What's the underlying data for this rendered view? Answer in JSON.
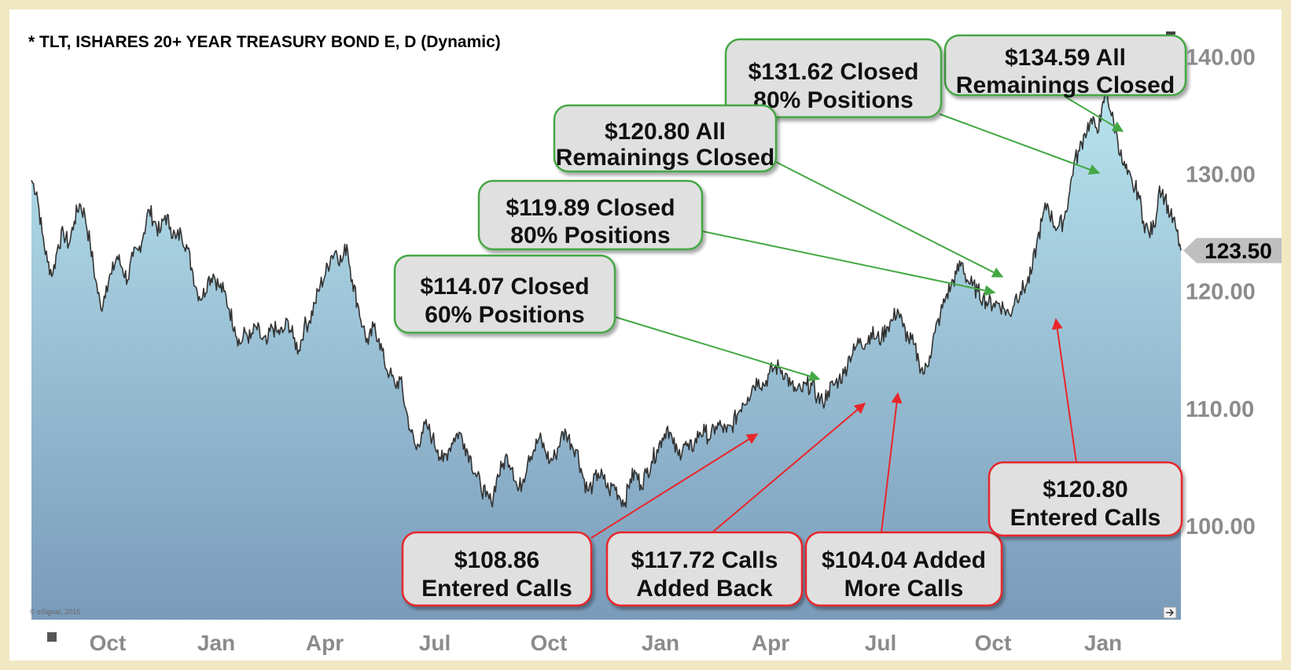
{
  "chart_data": {
    "type": "area",
    "title": "* TLT, ISHARES 20+ YEAR TREASURY BOND E, D (Dynamic)",
    "copyright": "© eSignal, 2015",
    "ylim": [
      92,
      143
    ],
    "y_ticks": [
      "100.00",
      "110.00",
      "120.00",
      "130.00",
      "140.00"
    ],
    "y_tick_values": [
      100,
      110,
      120,
      130,
      140
    ],
    "x_ticks": [
      "Oct",
      "Jan",
      "Apr",
      "Jul",
      "Oct",
      "Jan",
      "Apr",
      "Jul",
      "Oct",
      "Jan"
    ],
    "last_price": "123.50",
    "last_value": 123.5,
    "series": [
      {
        "values": [
          129.5,
          128.5,
          125,
          122.5,
          121.5,
          124,
          125,
          124,
          126,
          127.5,
          126.5,
          124,
          121,
          118.5,
          120.5,
          121.5,
          123,
          122,
          121,
          123,
          123.5,
          125,
          127,
          126,
          125,
          126.5,
          125.5,
          124.5,
          125,
          124,
          122,
          120,
          119.5,
          121,
          121.5,
          120.5,
          120,
          118.5,
          117,
          115.5,
          116.5,
          116,
          117,
          116,
          115.5,
          117,
          116.5,
          116.5,
          117.5,
          116,
          115,
          117,
          117.5,
          119,
          120.5,
          121.5,
          123,
          123.5,
          122.5,
          124,
          121,
          119,
          117,
          115.5,
          117,
          116,
          114,
          113,
          112,
          112.5,
          110,
          108,
          106.5,
          108,
          108.5,
          107.5,
          106.5,
          105.5,
          106.5,
          107.5,
          108,
          107,
          106,
          104.5,
          103.5,
          102.5,
          102,
          104,
          105,
          106,
          105,
          103,
          104,
          106,
          106.5,
          107.5,
          106.5,
          105.5,
          106,
          107.5,
          108,
          107,
          106.5,
          104.5,
          103,
          103.5,
          104.5,
          104,
          103,
          103.5,
          102.5,
          102,
          104,
          104.5,
          103.5,
          104.5,
          105.5,
          106.5,
          107.5,
          108.5,
          107,
          106,
          107,
          106.5,
          107,
          108,
          108,
          107.5,
          108.5,
          108.5,
          108,
          108.5,
          109.5,
          110.5,
          111,
          112,
          112.5,
          112,
          113,
          113.5,
          113.5,
          113,
          112,
          111.5,
          111.5,
          112,
          112,
          111,
          110.5,
          111.5,
          112,
          112.5,
          113,
          114.5,
          115,
          116,
          115.5,
          116.5,
          116,
          116,
          117,
          117.5,
          118.5,
          117,
          116,
          115.5,
          114,
          113,
          114.5,
          116.5,
          118,
          119.5,
          120.5,
          121.5,
          122.5,
          121,
          120.5,
          120,
          119.5,
          119,
          119,
          119,
          118.5,
          118,
          119.5,
          120,
          120.5,
          121.5,
          124,
          126,
          127.5,
          126,
          125.5,
          126,
          128,
          131,
          132,
          133.5,
          134.5,
          134,
          134.5,
          137.5,
          135,
          133.5,
          131,
          130,
          129,
          128.5,
          126,
          125,
          125.5,
          129,
          128,
          126.5,
          125.5,
          123.5
        ]
      }
    ],
    "annotations": [
      {
        "text_lines": [
          "$134.59 All",
          "Remainings Closed"
        ],
        "color": "#44a844"
      },
      {
        "text_lines": [
          "$131.62 Closed",
          "80% Positions"
        ],
        "color": "#44a844"
      },
      {
        "text_lines": [
          "$120.80 All",
          "Remainings Closed"
        ],
        "color": "#44a844"
      },
      {
        "text_lines": [
          "$119.89 Closed",
          "80% Positions"
        ],
        "color": "#44a844"
      },
      {
        "text_lines": [
          "$114.07 Closed",
          "60% Positions"
        ],
        "color": "#44a844"
      },
      {
        "text_lines": [
          "$108.86",
          "Entered Calls"
        ],
        "color": "#e8262a"
      },
      {
        "text_lines": [
          "$117.72 Calls",
          "Added Back"
        ],
        "color": "#e8262a"
      },
      {
        "text_lines": [
          "$104.04 Added",
          "More Calls"
        ],
        "color": "#e8262a"
      },
      {
        "text_lines": [
          "$120.80",
          "Entered Calls"
        ],
        "color": "#e8262a"
      }
    ],
    "colors": {
      "area_top": "#b8e4ee",
      "area_bottom": "#7a9bba",
      "line": "#333333",
      "green": "#44a844",
      "red": "#e8262a",
      "box_fill": "#e0e0e0",
      "axis_text": "#8b8b8b"
    }
  }
}
